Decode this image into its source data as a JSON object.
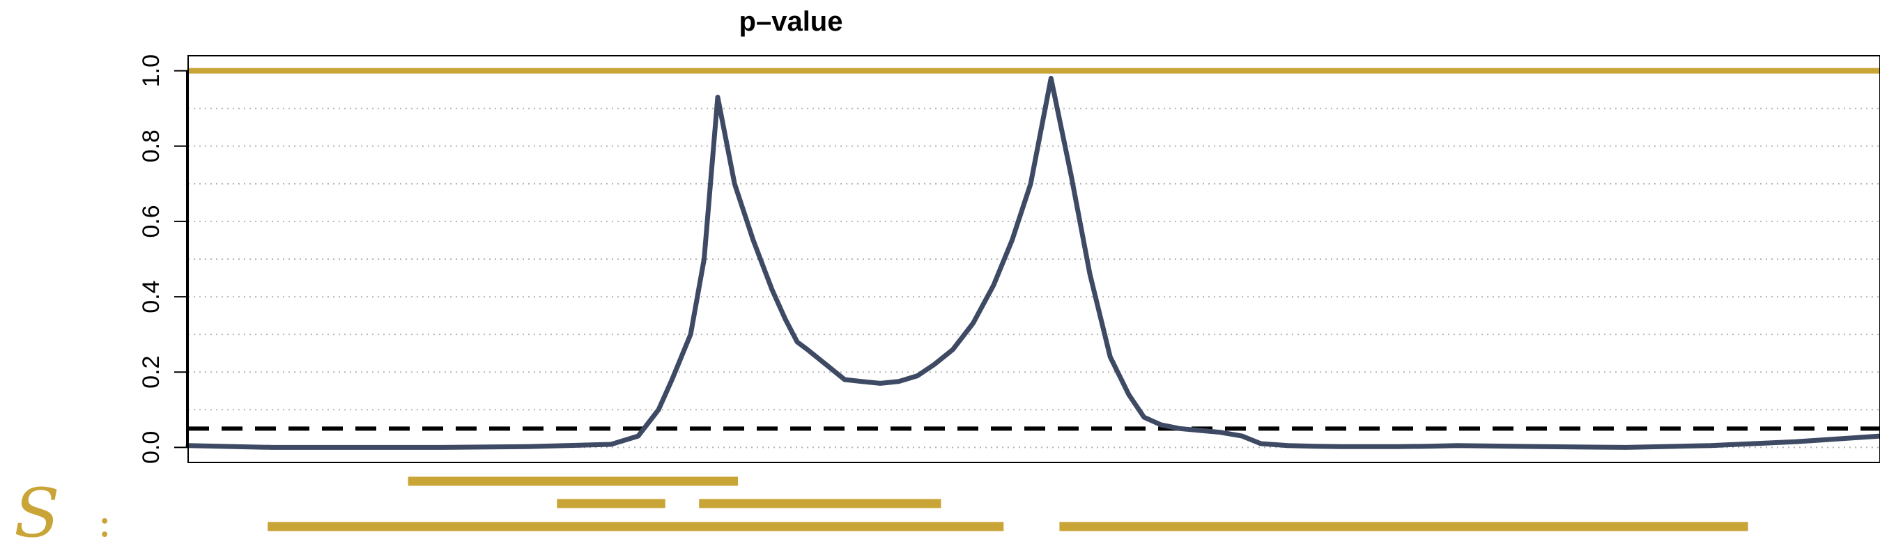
{
  "chart_data": {
    "type": "line",
    "title": "p–value",
    "xlabel": "",
    "ylabel": "",
    "xlim": [
      0,
      100
    ],
    "ylim": [
      -0.04,
      1.04
    ],
    "yticks": [
      0.0,
      0.2,
      0.4,
      0.6,
      0.8,
      1.0
    ],
    "ytick_labels": [
      "0.0",
      "0.2",
      "0.4",
      "0.6",
      "0.8",
      "1.0"
    ],
    "grid": "horizontal dotted",
    "series": [
      {
        "color": "#3e4a64",
        "style": "solid",
        "x": [
          0,
          5,
          10,
          15,
          20,
          25,
          26.6,
          27.8,
          28.6,
          29.7,
          30.5,
          31.3,
          32.3,
          33.4,
          34.5,
          35.3,
          36.0,
          36.6,
          37.7,
          38.8,
          39.8,
          40.9,
          42.0,
          43.1,
          44.1,
          45.2,
          46.4,
          47.6,
          48.7,
          49.8,
          51.0,
          52.2,
          53.3,
          54.5,
          55.6,
          56.5,
          57.5,
          58.6,
          59.8,
          61.0,
          62.3,
          63.4,
          65.0,
          66.6,
          68.1,
          69.7,
          71.5,
          73.3,
          75,
          80,
          85,
          90,
          95,
          100
        ],
        "y": [
          0.005,
          0.0,
          0.0,
          0.0,
          0.002,
          0.008,
          0.03,
          0.1,
          0.18,
          0.3,
          0.5,
          0.93,
          0.7,
          0.55,
          0.42,
          0.34,
          0.28,
          0.26,
          0.22,
          0.18,
          0.175,
          0.17,
          0.175,
          0.19,
          0.22,
          0.26,
          0.33,
          0.43,
          0.55,
          0.7,
          0.98,
          0.72,
          0.46,
          0.24,
          0.14,
          0.08,
          0.06,
          0.05,
          0.045,
          0.04,
          0.03,
          0.01,
          0.005,
          0.003,
          0.002,
          0.002,
          0.002,
          0.003,
          0.005,
          0.002,
          0.0,
          0.005,
          0.015,
          0.03
        ]
      }
    ],
    "reference_lines": [
      {
        "y": 1.0,
        "color": "#c9a436",
        "style": "solid"
      },
      {
        "y": 0.05,
        "color": "#000000",
        "style": "dashed"
      }
    ],
    "set_label": "S",
    "set_colon": ":",
    "set_color": "#c9a436",
    "intervals": [
      {
        "row": 0,
        "start": 13,
        "end": 32.5
      },
      {
        "row": 1,
        "start": 21.8,
        "end": 28.2
      },
      {
        "row": 1,
        "start": 30.2,
        "end": 44.5
      },
      {
        "row": 2,
        "start": 4.7,
        "end": 48.2
      },
      {
        "row": 2,
        "start": 51.5,
        "end": 92.2
      }
    ]
  }
}
